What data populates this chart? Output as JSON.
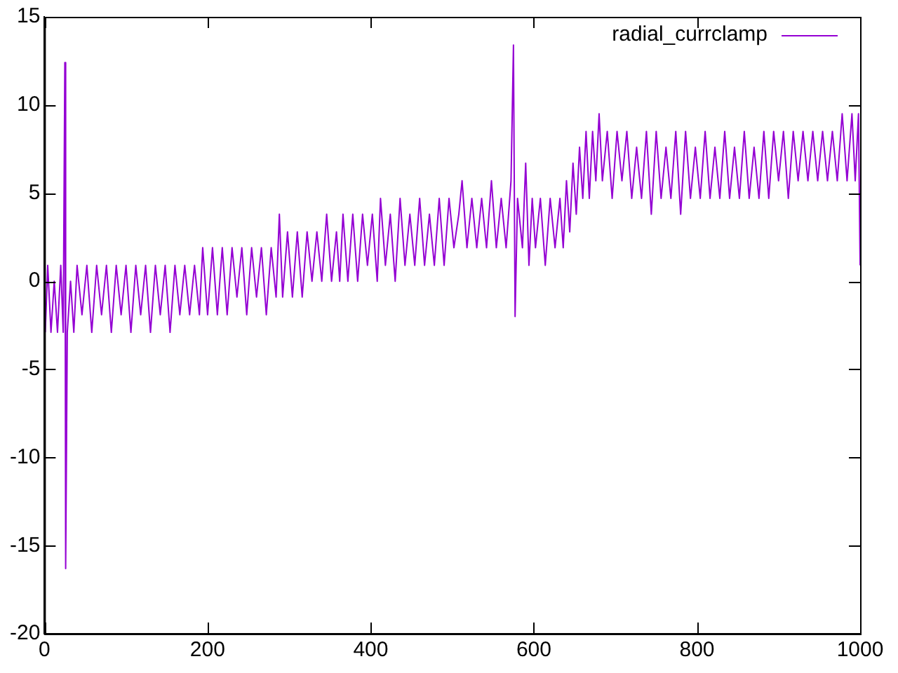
{
  "chart_data": {
    "type": "line",
    "xlim": [
      0,
      1000
    ],
    "xticks": [
      0,
      200,
      400,
      600,
      800,
      1000
    ],
    "ylim": [
      -20,
      15
    ],
    "yticks": [
      -20,
      -15,
      -10,
      -5,
      0,
      5,
      10,
      15
    ],
    "grid": false,
    "legend": "top right",
    "marker": "none",
    "line_style": "solid",
    "series": [
      {
        "name": "radial_currclamp",
        "color": "#9400d3",
        "x": [
          1,
          4,
          8,
          12,
          16,
          20,
          23,
          25,
          26,
          28,
          32,
          36,
          40,
          46,
          52,
          58,
          64,
          70,
          76,
          82,
          88,
          94,
          100,
          106,
          112,
          118,
          124,
          130,
          136,
          142,
          148,
          154,
          160,
          166,
          172,
          178,
          184,
          190,
          194,
          200,
          206,
          212,
          218,
          224,
          230,
          236,
          242,
          248,
          254,
          260,
          266,
          272,
          278,
          284,
          288,
          292,
          298,
          304,
          310,
          316,
          322,
          328,
          334,
          340,
          346,
          352,
          358,
          362,
          366,
          372,
          378,
          384,
          390,
          396,
          402,
          408,
          412,
          418,
          424,
          430,
          436,
          442,
          448,
          454,
          460,
          466,
          472,
          478,
          484,
          490,
          496,
          502,
          508,
          512,
          518,
          524,
          530,
          536,
          542,
          548,
          554,
          560,
          566,
          572,
          575,
          577,
          580,
          586,
          590,
          594,
          598,
          602,
          608,
          614,
          620,
          626,
          632,
          636,
          640,
          644,
          648,
          652,
          656,
          660,
          664,
          668,
          672,
          676,
          680,
          684,
          690,
          696,
          702,
          708,
          714,
          720,
          726,
          732,
          738,
          744,
          750,
          756,
          762,
          768,
          774,
          780,
          786,
          792,
          798,
          804,
          810,
          816,
          822,
          828,
          834,
          840,
          846,
          852,
          858,
          864,
          870,
          876,
          882,
          888,
          894,
          900,
          906,
          912,
          918,
          924,
          930,
          936,
          942,
          948,
          954,
          960,
          966,
          972,
          978,
          984,
          990,
          994,
          998,
          1000
        ],
        "values": [
          -2.9,
          0.9,
          -2.9,
          0,
          -2.9,
          0.9,
          -2.9,
          12.4,
          -16.3,
          -2.9,
          0,
          -2.9,
          0.9,
          -1.9,
          0.9,
          -2.9,
          0.9,
          -1.9,
          0.9,
          -2.9,
          0.9,
          -1.9,
          0.9,
          -2.9,
          0.9,
          -1.9,
          0.9,
          -2.9,
          0.9,
          -1.9,
          0.9,
          -2.9,
          0.9,
          -1.9,
          0.9,
          -1.9,
          0.9,
          -1.9,
          1.9,
          -1.9,
          1.9,
          -1.9,
          1.9,
          -1.9,
          1.9,
          -0.9,
          1.9,
          -1.9,
          1.9,
          -0.9,
          1.9,
          -1.9,
          1.9,
          -0.9,
          3.8,
          -0.9,
          2.8,
          -0.9,
          2.8,
          -0.9,
          2.8,
          0,
          2.8,
          0,
          3.8,
          0,
          2.8,
          0,
          3.8,
          0,
          3.8,
          0,
          3.8,
          0.9,
          3.8,
          0,
          4.7,
          0.9,
          3.8,
          0,
          4.7,
          0.9,
          3.8,
          0.9,
          4.7,
          0.9,
          3.8,
          0.9,
          4.7,
          0.9,
          4.7,
          1.9,
          3.8,
          5.7,
          1.9,
          4.7,
          1.9,
          4.7,
          1.9,
          5.7,
          1.9,
          4.7,
          1.9,
          5.7,
          13.4,
          -2,
          4.7,
          1.9,
          6.7,
          0.9,
          4.7,
          1.9,
          4.7,
          0.9,
          4.7,
          1.9,
          4.7,
          1.9,
          5.7,
          2.8,
          6.7,
          3.8,
          7.6,
          4.7,
          8.5,
          4.7,
          8.5,
          5.7,
          9.5,
          5.7,
          8.5,
          4.7,
          8.5,
          5.7,
          8.5,
          4.7,
          7.6,
          4.7,
          8.5,
          3.8,
          8.5,
          4.7,
          7.6,
          4.7,
          8.5,
          3.8,
          8.5,
          4.7,
          7.6,
          4.7,
          8.5,
          4.7,
          7.6,
          4.7,
          8.5,
          4.7,
          7.6,
          4.7,
          8.5,
          4.7,
          7.6,
          4.7,
          8.5,
          4.7,
          8.5,
          5.7,
          8.5,
          4.7,
          8.5,
          5.7,
          8.5,
          5.7,
          8.5,
          5.7,
          8.5,
          5.7,
          8.5,
          5.7,
          9.5,
          5.7,
          9.5,
          5.7,
          9.5,
          0.9
        ]
      }
    ]
  }
}
